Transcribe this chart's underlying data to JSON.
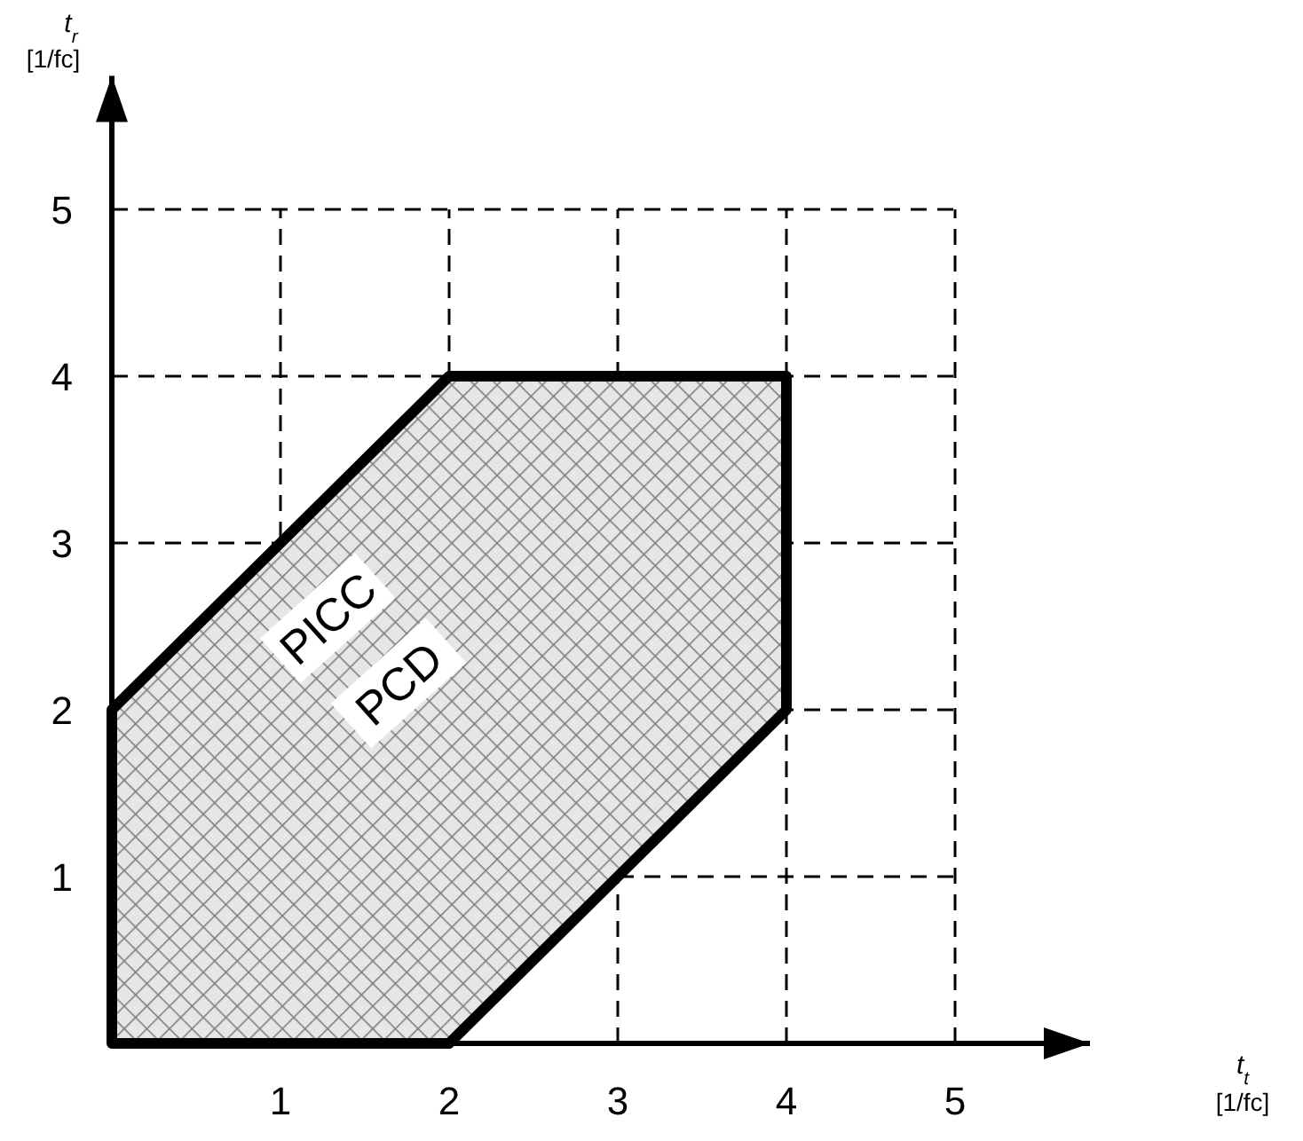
{
  "chart_data": {
    "type": "area",
    "xlabel": "t$_{t}$ [1/fc]",
    "ylabel": "t$_{r}$ [1/fc]",
    "xlim": [
      0,
      5.8
    ],
    "ylim": [
      0,
      5.8
    ],
    "xticks": [
      1,
      2,
      3,
      4,
      5
    ],
    "yticks": [
      1,
      2,
      3,
      4,
      5
    ],
    "grid": true,
    "line_style": "dashed",
    "series": [
      {
        "color": "#000000",
        "x": [
          0,
          0,
          2,
          4,
          4,
          2,
          0
        ],
        "values": [
          0,
          2,
          4,
          4,
          2,
          0,
          0
        ]
      }
    ],
    "annotations": [
      "PICC",
      "PCD"
    ]
  }
}
